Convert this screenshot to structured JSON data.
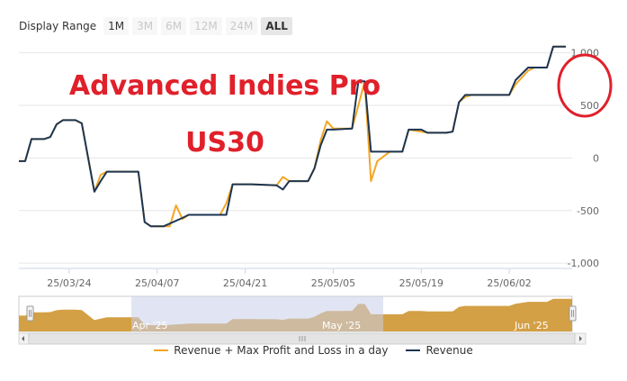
{
  "range_selector": {
    "label": "Display Range",
    "buttons": [
      {
        "label": "1M",
        "state": "enabled"
      },
      {
        "label": "3M",
        "state": "disabled"
      },
      {
        "label": "6M",
        "state": "disabled"
      },
      {
        "label": "12M",
        "state": "disabled"
      },
      {
        "label": "24M",
        "state": "disabled"
      },
      {
        "label": "ALL",
        "state": "selected"
      }
    ]
  },
  "overlay": {
    "title_line1": "Advanced Indies Pro",
    "title_line2": "US30",
    "title_color": "#e0202a",
    "highlight_circle_color": "#e0202a"
  },
  "navigator": {
    "labels": [
      "Apr '25",
      "May '25",
      "Jun '25"
    ],
    "fill_color": "#d4a045",
    "mask_color": "#c8d0ea"
  },
  "legend": [
    {
      "label": "Revenue + Max Profit and Loss in a day",
      "color": "#f5a623"
    },
    {
      "label": "Revenue",
      "color": "#1c3553"
    }
  ],
  "chart_data": {
    "type": "line",
    "x_unit": "date",
    "x_tick_labels": [
      "25/03/24",
      "25/04/07",
      "25/04/21",
      "25/05/05",
      "25/05/19",
      "25/06/02"
    ],
    "y_ticks": [
      -1000,
      -500,
      0,
      500,
      1000
    ],
    "y_tick_labels": [
      "-1,000",
      "-500",
      "0",
      "500",
      "1,000"
    ],
    "ylim": [
      -1050,
      1100
    ],
    "xlim": [
      "2025-03-16",
      "2025-06-12"
    ],
    "grid": "horizontal",
    "legend_position": "bottom",
    "series": [
      {
        "name": "Revenue",
        "color": "#1c3553",
        "x": [
          "2025-03-16",
          "2025-03-17",
          "2025-03-18",
          "2025-03-20",
          "2025-03-21",
          "2025-03-22",
          "2025-03-23",
          "2025-03-24",
          "2025-03-25",
          "2025-03-26",
          "2025-03-28",
          "2025-03-29",
          "2025-03-30",
          "2025-04-01",
          "2025-04-04",
          "2025-04-05",
          "2025-04-06",
          "2025-04-07",
          "2025-04-08",
          "2025-04-11",
          "2025-04-12",
          "2025-04-13",
          "2025-04-14",
          "2025-04-18",
          "2025-04-19",
          "2025-04-21",
          "2025-04-22",
          "2025-04-26",
          "2025-04-27",
          "2025-04-28",
          "2025-05-01",
          "2025-05-02",
          "2025-05-03",
          "2025-05-04",
          "2025-05-05",
          "2025-05-08",
          "2025-05-09",
          "2025-05-10",
          "2025-05-11",
          "2025-05-14",
          "2025-05-15",
          "2025-05-16",
          "2025-05-17",
          "2025-05-19",
          "2025-05-20",
          "2025-05-21",
          "2025-05-22",
          "2025-05-23",
          "2025-05-24",
          "2025-05-25",
          "2025-05-26",
          "2025-05-27",
          "2025-05-28",
          "2025-06-02",
          "2025-06-03",
          "2025-06-05",
          "2025-06-06",
          "2025-06-08",
          "2025-06-09",
          "2025-06-11"
        ],
        "values": [
          -30,
          -30,
          180,
          180,
          200,
          320,
          360,
          360,
          360,
          330,
          -320,
          -220,
          -130,
          -130,
          -130,
          -610,
          -650,
          -650,
          -650,
          -570,
          -540,
          -540,
          -540,
          -540,
          -250,
          -250,
          -250,
          -260,
          -300,
          -220,
          -220,
          -100,
          120,
          270,
          270,
          280,
          730,
          730,
          60,
          60,
          60,
          60,
          270,
          270,
          240,
          240,
          240,
          240,
          250,
          530,
          600,
          600,
          600,
          600,
          740,
          860,
          860,
          860,
          1060,
          1060
        ]
      },
      {
        "name": "Revenue + Max Profit and Loss in a day",
        "color": "#f5a623",
        "x": [
          "2025-03-16",
          "2025-03-17",
          "2025-03-18",
          "2025-03-20",
          "2025-03-21",
          "2025-03-22",
          "2025-03-23",
          "2025-03-24",
          "2025-03-25",
          "2025-03-26",
          "2025-03-28",
          "2025-03-29",
          "2025-03-30",
          "2025-04-01",
          "2025-04-04",
          "2025-04-05",
          "2025-04-06",
          "2025-04-07",
          "2025-04-08",
          "2025-04-09",
          "2025-04-10",
          "2025-04-11",
          "2025-04-12",
          "2025-04-13",
          "2025-04-14",
          "2025-04-17",
          "2025-04-18",
          "2025-04-19",
          "2025-04-21",
          "2025-04-22",
          "2025-04-26",
          "2025-04-27",
          "2025-04-28",
          "2025-05-01",
          "2025-05-02",
          "2025-05-03",
          "2025-05-04",
          "2025-05-05",
          "2025-05-06",
          "2025-05-08",
          "2025-05-09",
          "2025-05-10",
          "2025-05-11",
          "2025-05-12",
          "2025-05-14",
          "2025-05-16",
          "2025-05-17",
          "2025-05-19",
          "2025-05-20",
          "2025-05-21",
          "2025-05-22",
          "2025-05-23",
          "2025-05-24",
          "2025-05-25",
          "2025-05-26",
          "2025-05-27",
          "2025-05-28",
          "2025-06-02",
          "2025-06-03",
          "2025-06-05",
          "2025-06-06",
          "2025-06-08",
          "2025-06-09",
          "2025-06-11"
        ],
        "values": [
          -30,
          -30,
          180,
          180,
          200,
          320,
          360,
          360,
          360,
          330,
          -320,
          -160,
          -130,
          -130,
          -130,
          -610,
          -650,
          -650,
          -650,
          -650,
          -450,
          -580,
          -540,
          -540,
          -540,
          -540,
          -430,
          -250,
          -250,
          -250,
          -260,
          -180,
          -220,
          -220,
          -100,
          170,
          350,
          280,
          280,
          280,
          500,
          730,
          -220,
          -30,
          60,
          60,
          270,
          250,
          240,
          240,
          240,
          240,
          250,
          530,
          580,
          600,
          600,
          600,
          700,
          830,
          860,
          860,
          1060,
          1060
        ]
      }
    ]
  }
}
